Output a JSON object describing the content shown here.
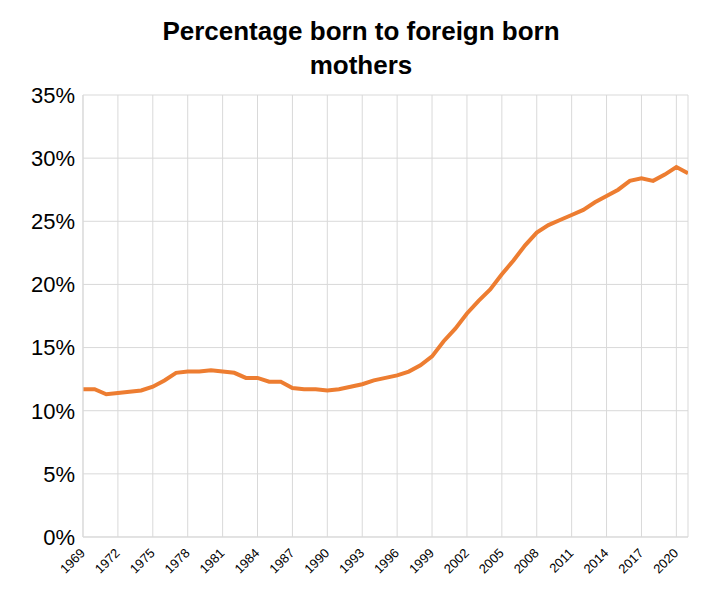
{
  "chart_data": {
    "type": "line",
    "title": "Percentage born to foreign born mothers",
    "x": [
      1969,
      1970,
      1971,
      1972,
      1973,
      1974,
      1975,
      1976,
      1977,
      1978,
      1979,
      1980,
      1981,
      1982,
      1983,
      1984,
      1985,
      1986,
      1987,
      1988,
      1989,
      1990,
      1991,
      1992,
      1993,
      1994,
      1995,
      1996,
      1997,
      1998,
      1999,
      2000,
      2001,
      2002,
      2003,
      2004,
      2005,
      2006,
      2007,
      2008,
      2009,
      2010,
      2011,
      2012,
      2013,
      2014,
      2015,
      2016,
      2017,
      2018,
      2019,
      2020,
      2021
    ],
    "values": [
      11.7,
      11.7,
      11.3,
      11.4,
      11.5,
      11.6,
      11.9,
      12.4,
      13.0,
      13.1,
      13.1,
      13.2,
      13.1,
      13.0,
      12.6,
      12.6,
      12.3,
      12.3,
      11.8,
      11.7,
      11.7,
      11.6,
      11.7,
      11.9,
      12.1,
      12.4,
      12.6,
      12.8,
      13.1,
      13.6,
      14.3,
      15.5,
      16.5,
      17.7,
      18.7,
      19.6,
      20.8,
      21.9,
      23.1,
      24.1,
      24.7,
      25.1,
      25.5,
      25.9,
      26.5,
      27.0,
      27.5,
      28.2,
      28.4,
      28.2,
      28.7,
      29.3,
      28.8
    ],
    "color": "#ed7d31",
    "xlim": [
      1969,
      2021
    ],
    "xticks": [
      1969,
      1972,
      1975,
      1978,
      1981,
      1984,
      1987,
      1990,
      1993,
      1996,
      1999,
      2002,
      2005,
      2008,
      2011,
      2014,
      2017,
      2020
    ],
    "ylim": [
      0,
      35
    ],
    "yticks": [
      {
        "value": 0,
        "label": "0%"
      },
      {
        "value": 5,
        "label": "5%"
      },
      {
        "value": 10,
        "label": "10%"
      },
      {
        "value": 15,
        "label": "15%"
      },
      {
        "value": 20,
        "label": "20%"
      },
      {
        "value": 25,
        "label": "25%"
      },
      {
        "value": 30,
        "label": "30%"
      },
      {
        "value": 35,
        "label": "35%"
      }
    ],
    "grid": true
  }
}
